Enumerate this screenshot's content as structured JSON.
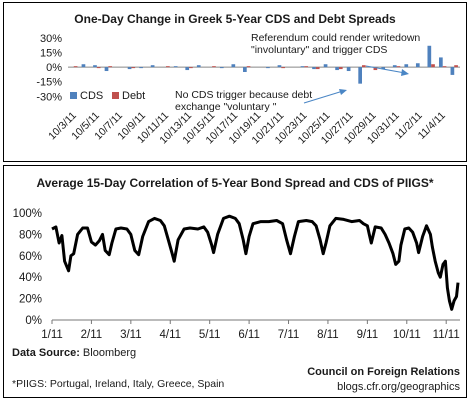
{
  "chart_data": [
    {
      "type": "bar",
      "title": "One-Day Change in Greek 5-Year CDS and Debt Spreads",
      "ylim": [
        -40,
        30
      ],
      "yticks": [
        "30%",
        "15%",
        "0%",
        "-15%",
        "-30%"
      ],
      "ytick_values": [
        30,
        15,
        0,
        -15,
        -30
      ],
      "xtick_labels": [
        "10/3/11",
        "10/5/11",
        "10/7/11",
        "10/9/11",
        "10/11/11",
        "10/13/11",
        "10/15/11",
        "10/17/11",
        "10/19/11",
        "10/21/11",
        "10/23/11",
        "10/25/11",
        "10/27/11",
        "10/29/11",
        "10/31/11",
        "11/2/11",
        "11/4/11"
      ],
      "start_date": "2011-10-03",
      "num_days": 34,
      "legend_placement": "left-bottom",
      "series": [
        {
          "name": "CDS",
          "color": "#4f81bd",
          "values": [
            0,
            3,
            2,
            -4,
            0,
            -2,
            -1,
            2,
            0,
            1,
            -3,
            2,
            0,
            -1,
            3,
            -5,
            0,
            -1,
            2,
            0,
            1,
            -2,
            3,
            -3,
            -4,
            -17,
            0,
            -2,
            2,
            3,
            4,
            22,
            10,
            -8
          ]
        },
        {
          "name": "Debt",
          "color": "#c0504d",
          "values": [
            1,
            0,
            -1,
            1,
            0,
            -1,
            0,
            0,
            1,
            0,
            -1,
            0,
            1,
            0,
            0,
            1,
            0,
            0,
            -1,
            0,
            1,
            -2,
            0,
            -2,
            0,
            2,
            -3,
            0,
            1,
            0,
            0,
            3,
            1,
            2
          ]
        }
      ],
      "annotations": [
        {
          "lines": [
            "Referendum could render writedown",
            "\"involuntary\" and trigger CDS"
          ]
        },
        {
          "lines": [
            "No CDS trigger because debt",
            "exchange \"voluntary \""
          ]
        }
      ]
    },
    {
      "type": "line",
      "title": "Average 15-Day Correlation of 5-Year Bond Spread and CDS of PIIGS*",
      "ylim": [
        0,
        100
      ],
      "yticks": [
        "100%",
        "80%",
        "60%",
        "40%",
        "20%",
        "0%"
      ],
      "ytick_values": [
        100,
        80,
        60,
        40,
        20,
        0
      ],
      "xtick_labels": [
        "1/11",
        "2/11",
        "3/11",
        "4/11",
        "5/11",
        "6/11",
        "7/11",
        "8/11",
        "9/11",
        "10/11",
        "11/11"
      ],
      "xlim": [
        0,
        10.35
      ],
      "color": "#000000",
      "points": [
        [
          0,
          85
        ],
        [
          0.1,
          87
        ],
        [
          0.18,
          72
        ],
        [
          0.25,
          79
        ],
        [
          0.32,
          55
        ],
        [
          0.42,
          46
        ],
        [
          0.48,
          60
        ],
        [
          0.55,
          62
        ],
        [
          0.65,
          80
        ],
        [
          0.78,
          86
        ],
        [
          0.9,
          86
        ],
        [
          1.0,
          73
        ],
        [
          1.1,
          70
        ],
        [
          1.2,
          74
        ],
        [
          1.28,
          80
        ],
        [
          1.35,
          65
        ],
        [
          1.45,
          61
        ],
        [
          1.52,
          72
        ],
        [
          1.62,
          85
        ],
        [
          1.75,
          86
        ],
        [
          1.9,
          85
        ],
        [
          2.0,
          80
        ],
        [
          2.1,
          65
        ],
        [
          2.2,
          61
        ],
        [
          2.3,
          78
        ],
        [
          2.45,
          92
        ],
        [
          2.6,
          95
        ],
        [
          2.75,
          93
        ],
        [
          2.85,
          88
        ],
        [
          2.95,
          75
        ],
        [
          3.05,
          62
        ],
        [
          3.1,
          55
        ],
        [
          3.2,
          75
        ],
        [
          3.35,
          85
        ],
        [
          3.5,
          86
        ],
        [
          3.7,
          85
        ],
        [
          3.85,
          87
        ],
        [
          3.95,
          82
        ],
        [
          4.05,
          70
        ],
        [
          4.1,
          63
        ],
        [
          4.2,
          80
        ],
        [
          4.35,
          95
        ],
        [
          4.5,
          97
        ],
        [
          4.65,
          95
        ],
        [
          4.75,
          90
        ],
        [
          4.85,
          75
        ],
        [
          4.92,
          62
        ],
        [
          5.0,
          78
        ],
        [
          5.1,
          90
        ],
        [
          5.3,
          92
        ],
        [
          5.5,
          92
        ],
        [
          5.7,
          93
        ],
        [
          5.85,
          90
        ],
        [
          5.95,
          75
        ],
        [
          6.05,
          62
        ],
        [
          6.15,
          78
        ],
        [
          6.25,
          92
        ],
        [
          6.45,
          93
        ],
        [
          6.6,
          92
        ],
        [
          6.7,
          88
        ],
        [
          6.8,
          75
        ],
        [
          6.88,
          62
        ],
        [
          6.95,
          72
        ],
        [
          7.05,
          88
        ],
        [
          7.2,
          95
        ],
        [
          7.4,
          94
        ],
        [
          7.6,
          92
        ],
        [
          7.8,
          93
        ],
        [
          7.9,
          90
        ],
        [
          8.0,
          88
        ],
        [
          8.05,
          80
        ],
        [
          8.1,
          72
        ],
        [
          8.2,
          87
        ],
        [
          8.35,
          86
        ],
        [
          8.45,
          80
        ],
        [
          8.55,
          72
        ],
        [
          8.65,
          62
        ],
        [
          8.72,
          52
        ],
        [
          8.8,
          55
        ],
        [
          8.85,
          70
        ],
        [
          8.95,
          85
        ],
        [
          9.05,
          86
        ],
        [
          9.15,
          82
        ],
        [
          9.25,
          72
        ],
        [
          9.3,
          63
        ],
        [
          9.4,
          78
        ],
        [
          9.5,
          88
        ],
        [
          9.6,
          80
        ],
        [
          9.65,
          68
        ],
        [
          9.72,
          55
        ],
        [
          9.8,
          44
        ],
        [
          9.85,
          40
        ],
        [
          9.92,
          52
        ],
        [
          9.98,
          55
        ],
        [
          10.03,
          30
        ],
        [
          10.08,
          18
        ],
        [
          10.14,
          10
        ],
        [
          10.2,
          18
        ],
        [
          10.26,
          22
        ],
        [
          10.3,
          35
        ]
      ]
    }
  ],
  "notes": {
    "source_label": "Data Source:",
    "source_value": "Bloomberg",
    "footnote": "*PIIGS: Portugal, Ireland, Italy, Greece, Spain",
    "org": "Council on Foreign Relations",
    "url": "blogs.cfr.org/geographics"
  }
}
